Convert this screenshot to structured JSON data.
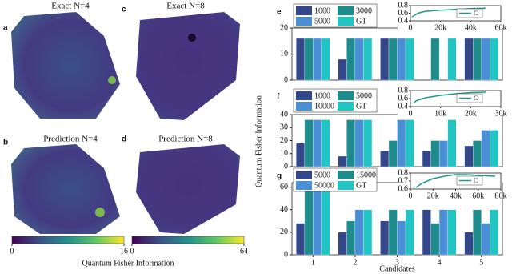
{
  "heatmaps": [
    {
      "label": "a",
      "title": "Exact N=4"
    },
    {
      "label": "b",
      "title": "Prediction N=4"
    },
    {
      "label": "c",
      "title": "Exact N=8"
    },
    {
      "label": "d",
      "title": "Prediction N=8"
    }
  ],
  "colorbars": [
    {
      "clim": [
        0,
        16
      ],
      "ticks": [
        0,
        16
      ]
    },
    {
      "clim": [
        0,
        64
      ],
      "ticks": [
        0,
        64
      ]
    }
  ],
  "colorbar_label": "Quantum Fisher Information",
  "chart_data": [
    {
      "type": "bar",
      "label": "e",
      "categories": [
        null,
        null,
        null,
        null,
        null
      ],
      "ylim": [
        0,
        20
      ],
      "yticks": [
        0,
        10,
        20
      ],
      "series": [
        {
          "name": "1000",
          "color": "#34468a",
          "values": [
            16,
            8,
            16,
            0,
            16
          ]
        },
        {
          "name": "3000",
          "color": "#1e8c8c",
          "values": [
            16,
            16,
            16,
            16,
            16
          ]
        },
        {
          "name": "5000",
          "color": "#4a8fd6",
          "values": [
            16,
            16,
            16,
            0,
            16
          ]
        },
        {
          "name": "GT",
          "color": "#22c3c3",
          "values": [
            16,
            16,
            16,
            16,
            16
          ]
        }
      ]
    },
    {
      "type": "line",
      "x": [
        1000,
        3000,
        5000,
        10000,
        20000,
        30000,
        40000,
        50000
      ],
      "xlim": [
        0,
        60000
      ],
      "xticks": [
        0,
        {
          "value": 20000,
          "label": "20k"
        },
        {
          "value": 40000,
          "label": "40k"
        },
        {
          "value": 60000,
          "label": "60k"
        }
      ],
      "ylim": [
        0.4,
        0.8
      ],
      "yticks": [
        0.4,
        0.6,
        0.8
      ],
      "series": [
        {
          "name": "C",
          "color": "#1e9a8a",
          "values": [
            0.5,
            0.55,
            0.6,
            0.65,
            0.68,
            0.7,
            0.72,
            0.73
          ]
        }
      ]
    },
    {
      "type": "bar",
      "label": "f",
      "ylabel": "Quantum Fisher Information",
      "categories": [
        null,
        null,
        null,
        null,
        null
      ],
      "ylim": [
        0,
        40
      ],
      "yticks": [
        0,
        10,
        20,
        30,
        40
      ],
      "series": [
        {
          "name": "1000",
          "color": "#34468a",
          "values": [
            18,
            8,
            12,
            12,
            16
          ]
        },
        {
          "name": "5000",
          "color": "#1e8c8c",
          "values": [
            36,
            36,
            20,
            20,
            20
          ]
        },
        {
          "name": "10000",
          "color": "#4a8fd6",
          "values": [
            36,
            36,
            36,
            20,
            28
          ]
        },
        {
          "name": "GT",
          "color": "#22c3c3",
          "values": [
            36,
            36,
            36,
            36,
            28
          ]
        }
      ]
    },
    {
      "type": "line",
      "x": [
        1000,
        2000,
        5000,
        10000,
        15000,
        20000,
        25000
      ],
      "xlim": [
        0,
        30000
      ],
      "xticks": [
        0,
        {
          "value": 10000,
          "label": "10k"
        },
        {
          "value": 20000,
          "label": "20k"
        },
        {
          "value": 30000,
          "label": "30k"
        }
      ],
      "ylim": [
        0.4,
        0.8
      ],
      "yticks": [
        0.4,
        0.6,
        0.8
      ],
      "series": [
        {
          "name": "C",
          "color": "#1e9a8a",
          "values": [
            0.48,
            0.55,
            0.62,
            0.68,
            0.72,
            0.75,
            0.76
          ]
        }
      ]
    },
    {
      "type": "bar",
      "label": "g",
      "xlabel": "Candidates",
      "categories": [
        "1",
        "2",
        "3",
        "4",
        "5"
      ],
      "ylim": [
        0,
        64
      ],
      "yticks": [
        0,
        20,
        40,
        60
      ],
      "series": [
        {
          "name": "5000",
          "color": "#34468a",
          "values": [
            28,
            20,
            30,
            40,
            20
          ]
        },
        {
          "name": "15000",
          "color": "#1e8c8c",
          "values": [
            64,
            30,
            40,
            28,
            40
          ]
        },
        {
          "name": "50000",
          "color": "#4a8fd6",
          "values": [
            64,
            40,
            30,
            40,
            28
          ]
        },
        {
          "name": "GT",
          "color": "#22c3c3",
          "values": [
            64,
            40,
            40,
            40,
            40
          ]
        }
      ]
    },
    {
      "type": "line",
      "x": [
        5000,
        10000,
        15000,
        20000,
        30000,
        40000,
        50000,
        60000,
        75000
      ],
      "xlim": [
        0,
        80000
      ],
      "xticks": [
        0,
        {
          "value": 20000,
          "label": "20k"
        },
        {
          "value": 40000,
          "label": "40k"
        },
        {
          "value": 60000,
          "label": "60k"
        },
        {
          "value": 80000,
          "label": "80k"
        }
      ],
      "ylim": [
        0.6,
        0.8
      ],
      "yticks": [
        0.6,
        0.7,
        0.8
      ],
      "series": [
        {
          "name": "C",
          "color": "#1e9a8a",
          "values": [
            0.62,
            0.67,
            0.7,
            0.73,
            0.76,
            0.78,
            0.78,
            0.77,
            0.76
          ]
        }
      ]
    }
  ]
}
